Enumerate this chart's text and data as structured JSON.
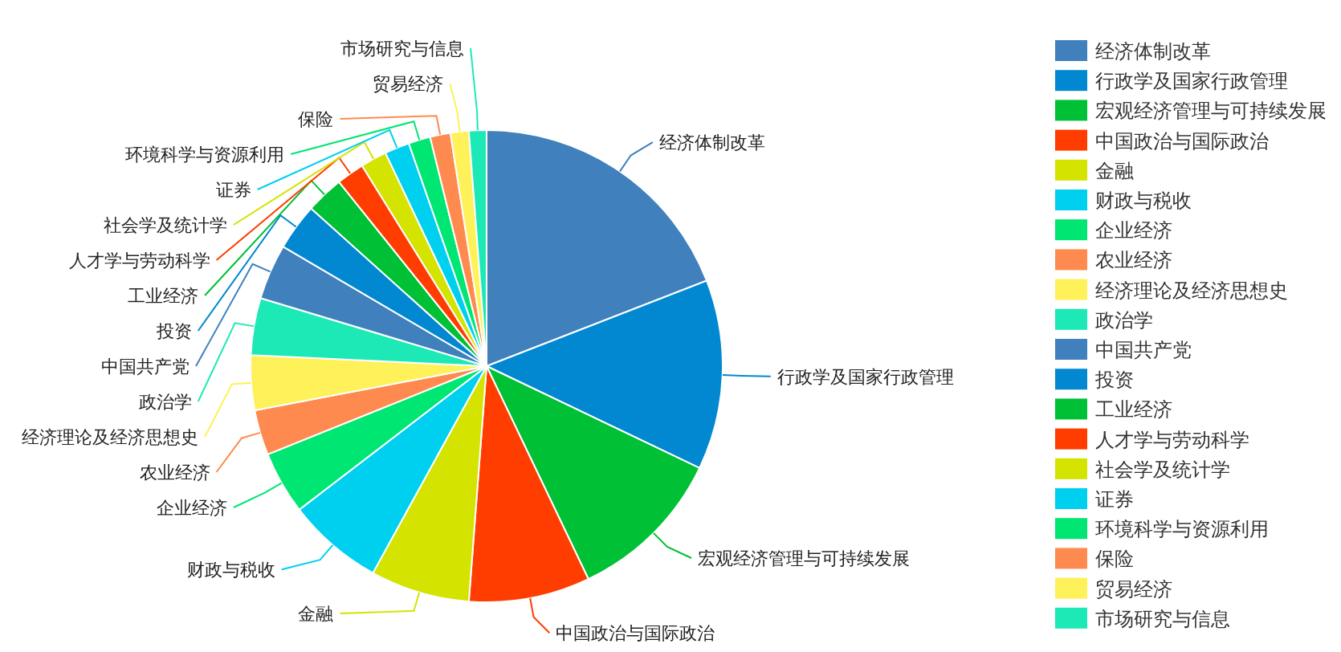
{
  "chart_data": {
    "type": "pie",
    "categories": [
      "经济体制改革",
      "行政学及国家行政管理",
      "宏观经济管理与可持续发展",
      "中国政治与国际政治",
      "金融",
      "财政与税收",
      "企业经济",
      "农业经济",
      "经济理论及经济思想史",
      "政治学",
      "中国共产党",
      "投资",
      "工业经济",
      "人才学与劳动科学",
      "社会学及统计学",
      "证券",
      "环境科学与资源利用",
      "保险",
      "贸易经济",
      "市场研究与信息"
    ],
    "values": [
      19.1,
      13.0,
      10.8,
      8.3,
      6.8,
      6.6,
      4.3,
      3.1,
      3.75,
      3.9,
      3.8,
      3.2,
      2.6,
      1.9,
      1.8,
      1.7,
      1.5,
      1.4,
      1.25,
      1.2
    ],
    "colors": [
      "#3f80bd",
      "#0288d1",
      "#00c035",
      "#ff3d00",
      "#d4e300",
      "#00d0ef",
      "#00e673",
      "#ff8a50",
      "#fff159",
      "#1de9b6",
      "#3f80bd",
      "#0288d1",
      "#00c035",
      "#ff3d00",
      "#d4e300",
      "#00d0ef",
      "#00e673",
      "#ff8a50",
      "#fff159",
      "#1de9b6"
    ],
    "legend": "right"
  }
}
